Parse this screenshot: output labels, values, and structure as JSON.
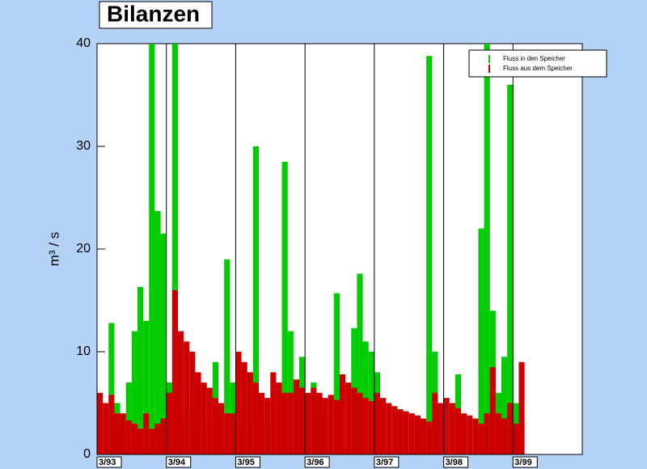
{
  "chart_data": {
    "type": "bar",
    "title": "Bilanzen",
    "y_label": "m³ / s",
    "x": [
      0,
      1,
      2,
      3,
      4,
      5,
      6,
      7,
      8,
      9,
      10,
      11,
      12,
      13,
      14,
      15,
      16,
      17,
      18,
      19,
      20,
      21,
      22,
      23,
      24,
      25,
      26,
      27,
      28,
      29,
      30,
      31,
      32,
      33,
      34,
      35,
      36,
      37,
      38,
      39,
      40,
      41,
      42,
      43,
      44,
      45,
      46,
      47,
      48,
      49,
      50,
      51,
      52,
      53,
      54,
      55,
      56,
      57,
      58,
      59,
      60,
      61,
      62,
      63,
      64,
      65,
      66,
      67,
      68,
      69,
      70,
      71,
      72,
      73
    ],
    "series": [
      {
        "name": "Fluss in den Speicher",
        "color": "#00cc00",
        "values": [
          0,
          0,
          12.8,
          5,
          3,
          7,
          12,
          16.3,
          13,
          40,
          23.7,
          21.5,
          7,
          40,
          0,
          3,
          4,
          5,
          0,
          3,
          9,
          0,
          19,
          7,
          0,
          3,
          8,
          30,
          5,
          3,
          0,
          0,
          28.5,
          12,
          0,
          9.5,
          0,
          7,
          0,
          4,
          0,
          15.7,
          0,
          0,
          12.3,
          17.6,
          11,
          10,
          8,
          0,
          0,
          0,
          0,
          0,
          0,
          0,
          0,
          38.8,
          10,
          4,
          0,
          0,
          7.8,
          0,
          0,
          0,
          22,
          40,
          14,
          6,
          9.5,
          36,
          5,
          0
        ]
      },
      {
        "name": "Fluss aus dem Speicher",
        "color": "#cc0000",
        "values": [
          6,
          5,
          5.8,
          4,
          4,
          3.3,
          3,
          2.5,
          4,
          2.5,
          3,
          3.5,
          6,
          16,
          12,
          11,
          10,
          8,
          7,
          6.5,
          5.5,
          5,
          4,
          4,
          10,
          9,
          8,
          7,
          6,
          5.5,
          8,
          7,
          6,
          6,
          7.3,
          6.5,
          6,
          6.5,
          6,
          5.5,
          5.8,
          5.3,
          7.8,
          7,
          6.5,
          6,
          5.5,
          5.2,
          6,
          5.5,
          5,
          4.7,
          4.4,
          4.2,
          4,
          3.8,
          3.5,
          3.2,
          6,
          5,
          5.5,
          5,
          4.5,
          4,
          3.8,
          3.5,
          3,
          4,
          8.5,
          4,
          3.5,
          5,
          3,
          9
        ]
      }
    ],
    "xlim": [
      0,
      84
    ],
    "xticks": [
      {
        "value": 0,
        "label": "3/93"
      },
      {
        "value": 12,
        "label": "3/94"
      },
      {
        "value": 24,
        "label": "3/95"
      },
      {
        "value": 36,
        "label": "3/96"
      },
      {
        "value": 48,
        "label": "3/97"
      },
      {
        "value": 60,
        "label": "3/98"
      },
      {
        "value": 72,
        "label": "3/99"
      }
    ],
    "ylim": [
      0,
      40
    ],
    "yticks": [
      0,
      10,
      20,
      30,
      40
    ],
    "grid": true,
    "legend": "top-right"
  }
}
